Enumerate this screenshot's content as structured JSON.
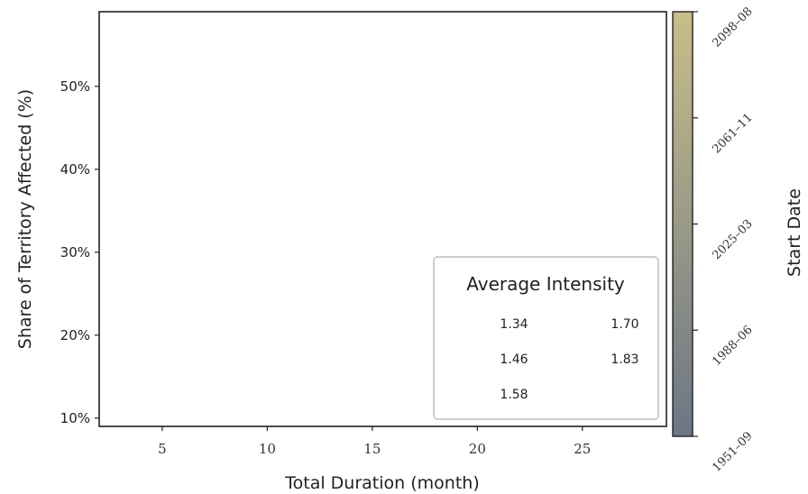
{
  "chart_data": {
    "type": "scatter",
    "title": "",
    "xlabel": "Total Duration (month)",
    "ylabel": "Share of Territory Affected (%)",
    "xlim": [
      2,
      29
    ],
    "ylim": [
      9,
      59
    ],
    "x_ticks": [
      5,
      10,
      15,
      20,
      25
    ],
    "x_tick_labels": [
      "5",
      "10",
      "15",
      "20",
      "25"
    ],
    "y_ticks": [
      10,
      20,
      30,
      40,
      50
    ],
    "y_tick_labels": [
      "10%",
      "20%",
      "30%",
      "40%",
      "50%"
    ],
    "grid": false,
    "series": [],
    "colorbar": {
      "label": "Start Date",
      "ticks": [
        "1951–09",
        "1988–06",
        "2025–03",
        "2061–11",
        "2098–08"
      ],
      "color_low": "#6b7686",
      "color_high": "#c9bd88"
    },
    "legend": {
      "title": "Average Intensity",
      "placement": "lower-right",
      "items": [
        "1.34",
        "1.70",
        "1.46",
        "1.83",
        "1.58"
      ]
    }
  }
}
